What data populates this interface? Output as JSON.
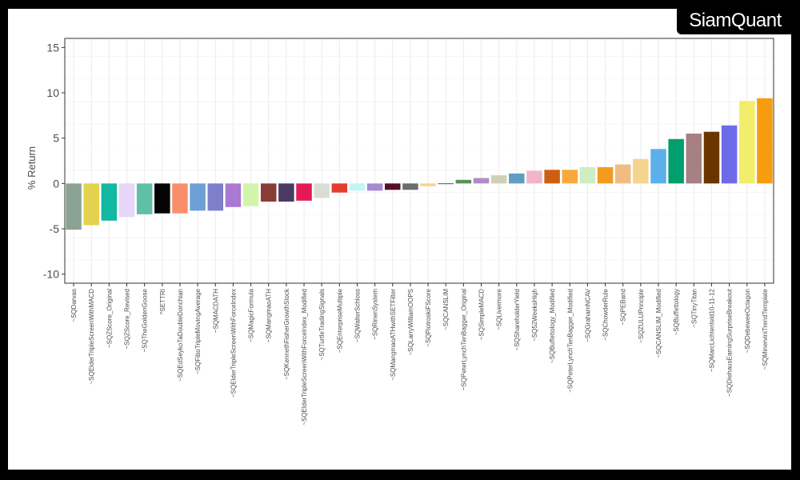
{
  "brand": {
    "logo_text": "SiamQuant"
  },
  "chart_data": {
    "type": "bar",
    "title": "",
    "xlabel": "",
    "ylabel": "% Return",
    "ylim": [
      -11,
      16
    ],
    "yticks": [
      -10,
      -5,
      0,
      5,
      10,
      15
    ],
    "grid": true,
    "legend": "none",
    "categories": [
      "~SQDarvas",
      "~SQElderTripleScreenWithMACD",
      "~SQZScore_Original",
      "~SQZScore_Revised",
      "~SQTheGoldenGoose",
      "^SETTRI",
      "~SQEdSeykoTaDoubleDonchian",
      "~SQFiboTripleMovingAverage",
      "~SQMACDATH",
      "~SQElderTripleScreenWithForceIndex",
      "~SQMagicFormula",
      "~SQMangmaoATH",
      "~SQKennethFisherGrowthStock",
      "~SQElderTripleScreenWithForceIndex_Modified",
      "~SQTurtleTradingSignals",
      "~SQEnterpriseMultiple",
      "~SQWalterSchloss",
      "~SQRinenSystem",
      "~SQMangmaoATHwithSETFilter",
      "~SQLarryWilliamOOPS",
      "~SQPiotroskiFScore",
      "~SQCANSLIM",
      "~SQPeterLynchTenBagger_Original",
      "~SQSimpleMACD",
      "~SQLivermore",
      "~SQShareholderYield",
      "~SQ52WeeksHigh",
      "~SQBuffettology_Modified",
      "~SQPeterLynchTenBagger_Modified",
      "~SQGrahamNCAV",
      "~SQChowderRule",
      "~SQPEBand",
      "~SQZULUPrinciple",
      "~SQCANSLIM_Modified",
      "~SQBuffettology",
      "~SQTinyTitan",
      "~SQMarcLichtenfeld10-11-12",
      "~SQDiehausEarningSurpriseBreakout",
      "~SQDebeweeOctagon",
      "~SQMinerviniTrendTemplate"
    ],
    "values": [
      -5.1,
      -4.6,
      -4.1,
      -3.7,
      -3.4,
      -3.3,
      -3.3,
      -3.0,
      -3.0,
      -2.6,
      -2.5,
      -2.0,
      -2.0,
      -1.9,
      -1.6,
      -1.0,
      -0.8,
      -0.8,
      -0.7,
      -0.7,
      -0.3,
      0.0,
      0.4,
      0.6,
      0.9,
      1.1,
      1.4,
      1.5,
      1.5,
      1.8,
      1.8,
      2.1,
      2.7,
      3.8,
      4.9,
      5.5,
      5.7,
      6.4,
      9.1,
      9.4
    ],
    "colors": [
      "#8aa393",
      "#e3d24e",
      "#13b8a2",
      "#e6d6f7",
      "#60c0a7",
      "#050505",
      "#fb8e6a",
      "#6c9fd5",
      "#7e7ec9",
      "#a979d4",
      "#d2f6a9",
      "#8a3d36",
      "#4b3b63",
      "#e31a55",
      "#d9ddd6",
      "#e53c2c",
      "#c4f4f6",
      "#a88ad1",
      "#550f24",
      "#6c6c6c",
      "#f6d482",
      "#2c2c2c",
      "#5a9158",
      "#b08cc6",
      "#d0d0b6",
      "#5f9ec2",
      "#f0b5c6",
      "#ce5f12",
      "#f9a93a",
      "#d0ecc2",
      "#f29c1f",
      "#f0bc84",
      "#f4d48e",
      "#5cb0ea",
      "#009f6d",
      "#a68082",
      "#6a3600",
      "#6e6bea",
      "#f2ed6a",
      "#f79c0f"
    ]
  }
}
